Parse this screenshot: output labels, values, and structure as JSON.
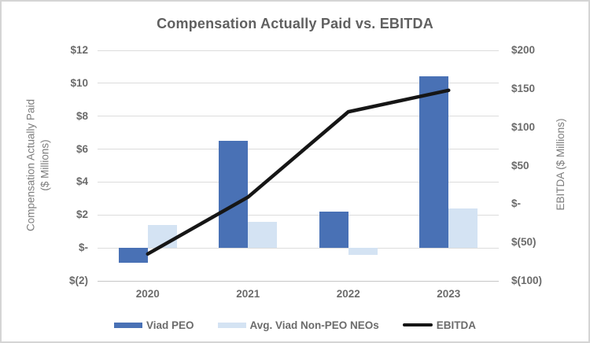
{
  "chart_data": {
    "type": "bar",
    "subtype": "combo-bar-line",
    "title": "Compensation Actually Paid vs. EBITDA",
    "categories": [
      "2020",
      "2021",
      "2022",
      "2023"
    ],
    "bar_series": [
      {
        "name": "Viad PEO",
        "axis": "left",
        "color": "#4971b5",
        "values": [
          -0.9,
          6.5,
          2.2,
          10.4
        ]
      },
      {
        "name": "Avg. Viad Non-PEO NEOs",
        "axis": "left",
        "color": "#d4e3f3",
        "values": [
          1.4,
          1.6,
          -0.4,
          2.4
        ]
      }
    ],
    "line_series": {
      "name": "EBITDA",
      "axis": "right",
      "color": "#161616",
      "values": [
        -65,
        9,
        120,
        148
      ]
    },
    "left_axis": {
      "title_line1": "Compensation Actually Paid",
      "title_line2": "($ Millions)",
      "min": -2,
      "max": 12,
      "tick_step": 2,
      "tick_labels": [
        "$12",
        "$10",
        "$8",
        "$6",
        "$4",
        "$2",
        "$-",
        "$(2)"
      ]
    },
    "right_axis": {
      "title": "EBITDA ($ Millions)",
      "min": -100,
      "max": 200,
      "tick_step": 50,
      "tick_labels": [
        "$200",
        "$150",
        "$100",
        "$50",
        "$-",
        "$(50)",
        "$(100)"
      ]
    },
    "grid": true,
    "legend_position": "bottom",
    "colors": {
      "grid": "#dcdcdc",
      "text": "#6b6b6b",
      "title": "#606060",
      "axis_title": "#7d7d7d"
    }
  }
}
